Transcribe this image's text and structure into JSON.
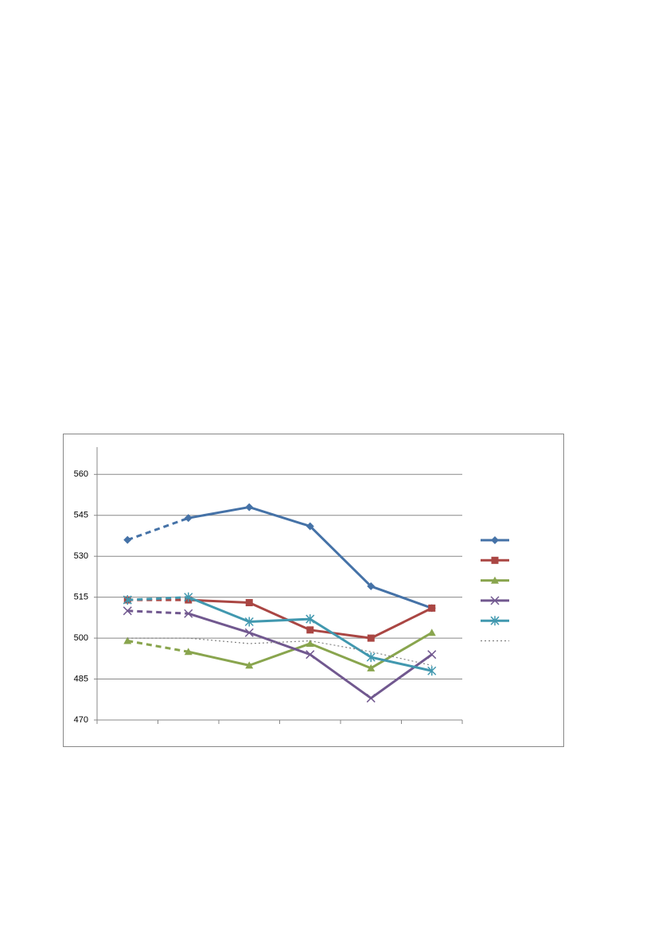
{
  "chart_data": {
    "type": "line",
    "categories": [
      null,
      null,
      null,
      null,
      null,
      null
    ],
    "ylim": [
      470,
      570
    ],
    "yticks": [
      470,
      485,
      500,
      515,
      530,
      545,
      560
    ],
    "grid": true,
    "legend": "right",
    "series": [
      {
        "color": "#4572a7",
        "marker": "diamond",
        "dash_first_segment": true,
        "values": [
          536,
          544,
          548,
          541,
          519,
          511
        ]
      },
      {
        "color": "#aa4643",
        "marker": "square",
        "dash_first_segment": true,
        "values": [
          514,
          514,
          513,
          503,
          500,
          511
        ]
      },
      {
        "color": "#89a54e",
        "marker": "triangle",
        "dash_first_segment": true,
        "values": [
          499,
          495,
          490,
          498,
          489,
          502
        ]
      },
      {
        "color": "#71588f",
        "marker": "x",
        "dash_first_segment": true,
        "values": [
          510,
          509,
          502,
          494,
          478,
          494
        ]
      },
      {
        "color": "#4198af",
        "marker": "star",
        "dash_first_segment": true,
        "values": [
          514,
          515,
          506,
          507,
          493,
          488
        ]
      },
      {
        "color": "#808080",
        "marker": "none",
        "line_style": "dotted",
        "values": [
          500,
          500,
          498,
          499,
          495,
          490
        ]
      }
    ]
  }
}
